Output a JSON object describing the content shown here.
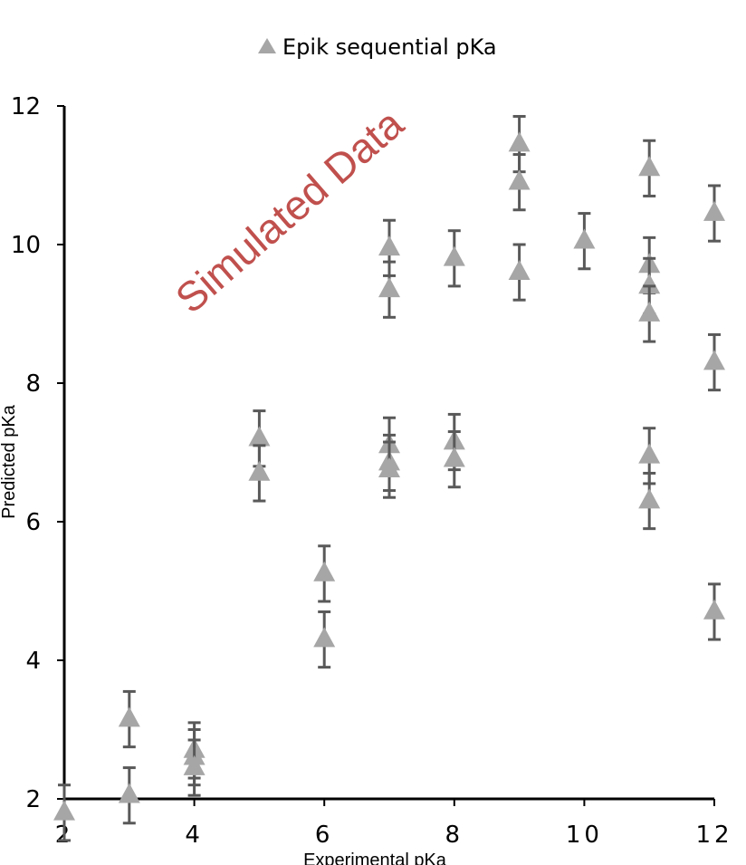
{
  "chart_data": {
    "type": "scatter",
    "title": "",
    "xlabel": "Experimental pKa",
    "ylabel": "Predicted pKa",
    "xlim": [
      2,
      12
    ],
    "ylim": [
      2,
      12
    ],
    "xticks": [
      2,
      4,
      6,
      8,
      10,
      12
    ],
    "yticks": [
      2,
      4,
      6,
      8,
      10,
      12
    ],
    "grid": false,
    "legend_position": "top-center",
    "watermark": "Simulated Data",
    "colors": {
      "marker": "#a6a6a6",
      "error_bar": "#595959",
      "axis": "#000000",
      "watermark": "#c0504d"
    },
    "series": [
      {
        "name": "Epik sequential pKa",
        "marker": "triangle",
        "error": 0.4,
        "points": [
          {
            "x": 2,
            "y": 1.8
          },
          {
            "x": 3,
            "y": 3.15
          },
          {
            "x": 3,
            "y": 2.05
          },
          {
            "x": 4,
            "y": 2.7
          },
          {
            "x": 4,
            "y": 2.6
          },
          {
            "x": 4,
            "y": 2.45
          },
          {
            "x": 5,
            "y": 7.2
          },
          {
            "x": 5,
            "y": 6.7
          },
          {
            "x": 6,
            "y": 5.25
          },
          {
            "x": 6,
            "y": 4.3
          },
          {
            "x": 7,
            "y": 9.95
          },
          {
            "x": 7,
            "y": 9.35
          },
          {
            "x": 7,
            "y": 7.1
          },
          {
            "x": 7,
            "y": 6.85
          },
          {
            "x": 7,
            "y": 6.75
          },
          {
            "x": 8,
            "y": 9.8
          },
          {
            "x": 8,
            "y": 7.15
          },
          {
            "x": 8,
            "y": 6.9
          },
          {
            "x": 9,
            "y": 11.45
          },
          {
            "x": 9,
            "y": 10.9
          },
          {
            "x": 9,
            "y": 9.6
          },
          {
            "x": 10,
            "y": 10.05
          },
          {
            "x": 11,
            "y": 11.1
          },
          {
            "x": 11,
            "y": 9.7
          },
          {
            "x": 11,
            "y": 9.4
          },
          {
            "x": 11,
            "y": 9.0
          },
          {
            "x": 11,
            "y": 6.95
          },
          {
            "x": 11,
            "y": 6.3
          },
          {
            "x": 12,
            "y": 10.45
          },
          {
            "x": 12,
            "y": 8.3
          },
          {
            "x": 12,
            "y": 4.7
          }
        ]
      }
    ]
  }
}
